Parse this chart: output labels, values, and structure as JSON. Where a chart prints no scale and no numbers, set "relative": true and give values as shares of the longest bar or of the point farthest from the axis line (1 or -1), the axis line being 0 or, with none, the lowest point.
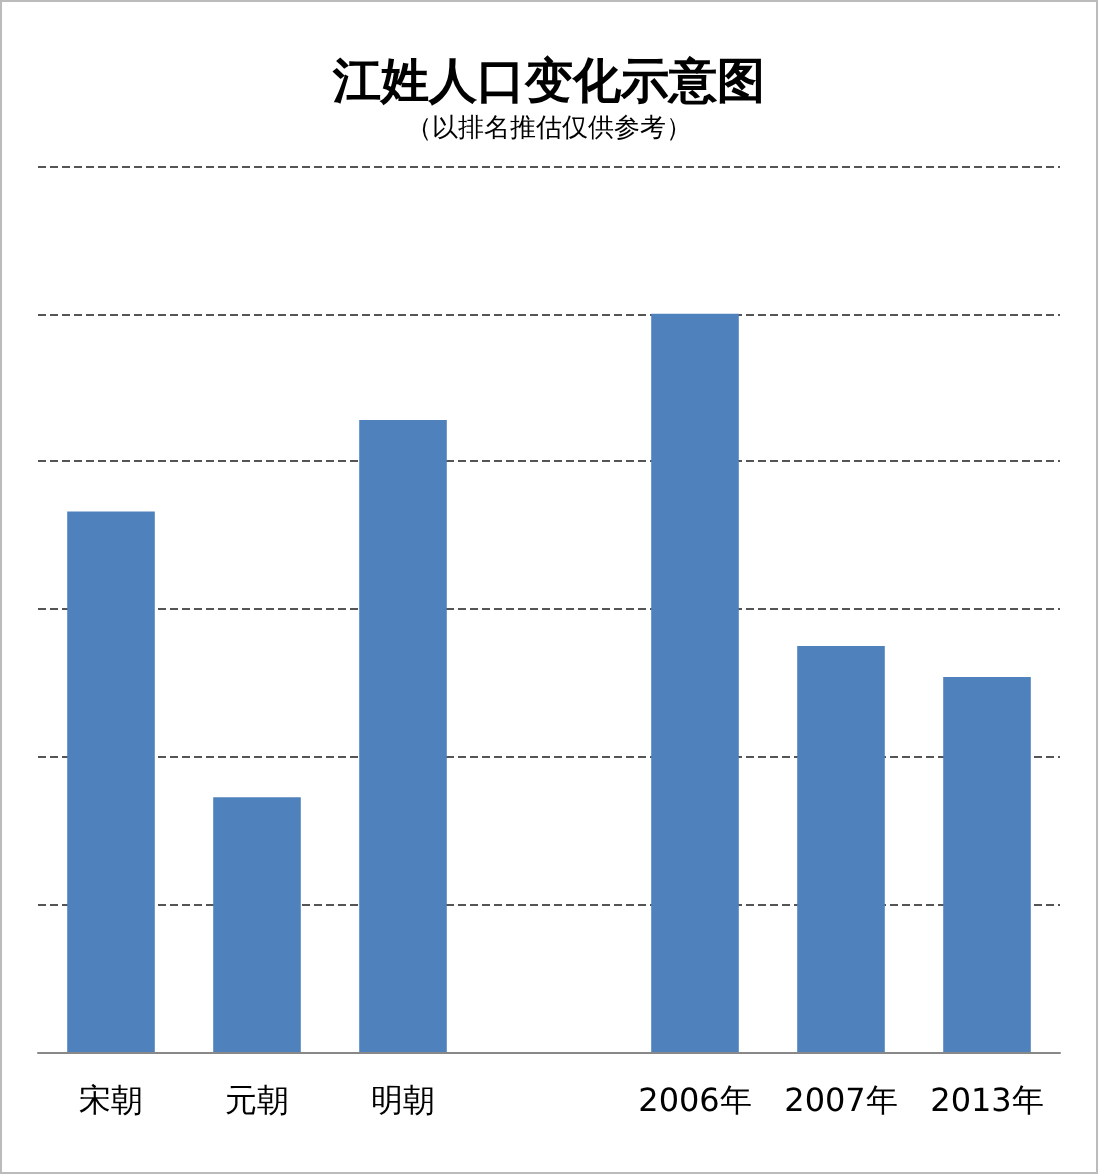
{
  "chart_data": {
    "type": "bar",
    "title": "江姓人口变化示意图",
    "subtitle": "（以排名推估仅供参考）",
    "categories": [
      "宋朝",
      "元朝",
      "明朝",
      null,
      "2006年",
      "2007年",
      "2013年"
    ],
    "values": [
      0.732,
      0.345,
      0.856,
      null,
      1,
      0.55,
      0.508
    ],
    "color": "#4f81bd",
    "relative": true,
    "grid": "y"
  }
}
